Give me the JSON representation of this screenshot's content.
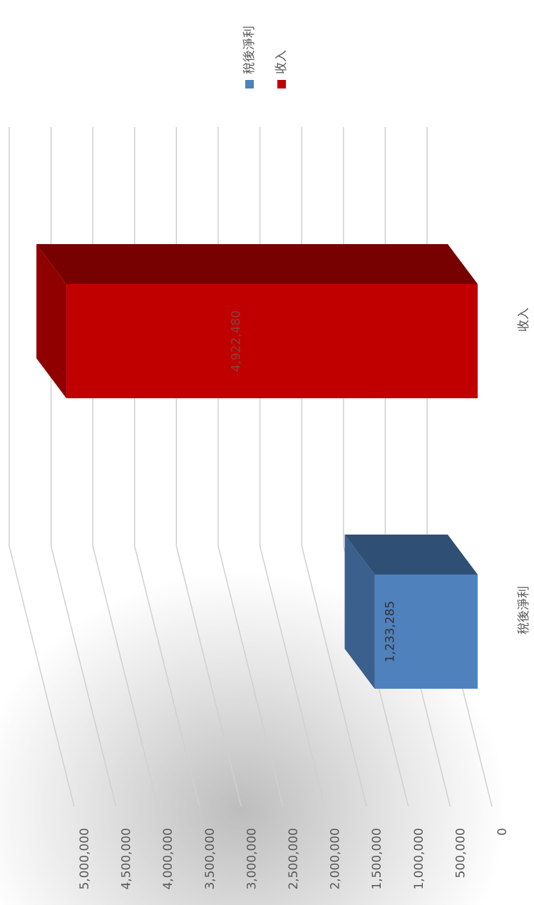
{
  "chart_data": {
    "type": "bar3d",
    "categories": [
      "稅後淨利",
      "收入"
    ],
    "series": [
      {
        "name": "稅後淨利",
        "color": "#4f81bd"
      },
      {
        "name": "收入",
        "color": "#c00000"
      }
    ],
    "values": [
      1233285,
      4922480
    ],
    "value_labels": [
      "1,233,285",
      "4,922,480"
    ],
    "ylim": [
      0,
      5000000
    ],
    "yticks": [
      0,
      {
        "value": 500000,
        "label": "500,000"
      },
      {
        "value": 1000000,
        "label": "1,000,000"
      },
      {
        "value": 1500000,
        "label": "1,500,000"
      },
      {
        "value": 2000000,
        "label": "2,000,000"
      },
      {
        "value": 2500000,
        "label": "2,500,000"
      },
      {
        "value": 3000000,
        "label": "3,000,000"
      },
      {
        "value": 3500000,
        "label": "3,500,000"
      },
      {
        "value": 4000000,
        "label": "4,000,000"
      },
      {
        "value": 4500000,
        "label": "4,500,000"
      },
      {
        "value": 5000000,
        "label": "5,000,000"
      }
    ],
    "grid": true,
    "rotated": true
  }
}
